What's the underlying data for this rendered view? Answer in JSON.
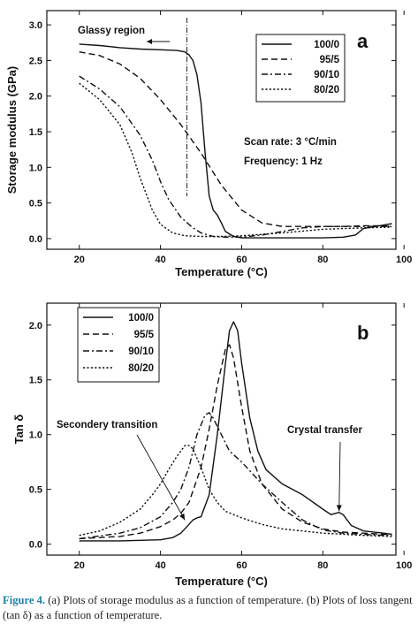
{
  "figure": {
    "caption_label": "Figure 4.",
    "caption_text": "(a) Plots of storage modulus as a function of temperature. (b) Plots of loss tangent (tan δ) as a function of temperature."
  },
  "chart_data": [
    {
      "type": "line",
      "panel_label": "a",
      "xlabel": "Temperature (°C)",
      "ylabel": "Storage modulus (GPa)",
      "xlim": [
        12,
        98
      ],
      "ylim": [
        -0.15,
        3.2
      ],
      "xticks": [
        "20",
        "40",
        "60",
        "80",
        "100"
      ],
      "yticks": [
        "0.0",
        "0.5",
        "1.0",
        "1.5",
        "2.0",
        "2.5",
        "3.0"
      ],
      "annotations": [
        {
          "text": "Glassy region",
          "x": 46.5
        },
        {
          "text": "Scan rate: 3 °C/min"
        },
        {
          "text": "Frequency: 1 Hz"
        }
      ],
      "legend_position": "top-right",
      "series": [
        {
          "name": "100/0",
          "dash": "solid",
          "x": [
            20,
            25,
            30,
            35,
            40,
            44,
            46,
            47,
            48,
            49,
            50,
            51,
            52,
            53,
            54,
            55,
            56,
            58,
            60,
            65,
            70,
            75,
            80,
            85,
            88,
            90,
            95,
            97
          ],
          "y": [
            2.73,
            2.71,
            2.68,
            2.66,
            2.65,
            2.64,
            2.62,
            2.58,
            2.5,
            2.3,
            1.9,
            1.2,
            0.6,
            0.4,
            0.33,
            0.22,
            0.1,
            0.03,
            0.01,
            0.01,
            0.01,
            0.01,
            0.01,
            0.02,
            0.05,
            0.14,
            0.19,
            0.21
          ]
        },
        {
          "name": "95/5",
          "dash": "dash",
          "x": [
            20,
            25,
            30,
            35,
            40,
            45,
            50,
            55,
            60,
            65,
            70,
            75,
            80,
            85,
            90,
            95,
            97
          ],
          "y": [
            2.62,
            2.57,
            2.45,
            2.25,
            1.95,
            1.6,
            1.2,
            0.75,
            0.4,
            0.22,
            0.17,
            0.17,
            0.17,
            0.17,
            0.18,
            0.18,
            0.17
          ]
        },
        {
          "name": "90/10",
          "dash": "dashdot",
          "x": [
            20,
            25,
            30,
            35,
            38,
            40,
            42,
            45,
            48,
            50,
            53,
            56,
            60,
            65,
            70,
            75,
            80,
            85,
            90,
            95,
            97
          ],
          "y": [
            2.28,
            2.1,
            1.85,
            1.45,
            1.1,
            0.8,
            0.55,
            0.3,
            0.15,
            0.08,
            0.03,
            0.02,
            0.02,
            0.05,
            0.1,
            0.15,
            0.17,
            0.17,
            0.17,
            0.17,
            0.17
          ]
        },
        {
          "name": "80/20",
          "dash": "dot",
          "x": [
            20,
            25,
            30,
            33,
            35,
            38,
            40,
            43,
            46,
            50,
            55,
            60,
            70,
            80,
            90,
            97
          ],
          "y": [
            2.18,
            1.95,
            1.6,
            1.2,
            0.85,
            0.4,
            0.2,
            0.08,
            0.04,
            0.03,
            0.03,
            0.04,
            0.08,
            0.13,
            0.15,
            0.16
          ]
        }
      ]
    },
    {
      "type": "line",
      "panel_label": "b",
      "xlabel": "Temperature (°C)",
      "ylabel": "Tan δ",
      "xlim": [
        12,
        98
      ],
      "ylim": [
        -0.1,
        2.2
      ],
      "xticks": [
        "20",
        "40",
        "60",
        "80",
        "100"
      ],
      "yticks": [
        "0.0",
        "0.5",
        "1.0",
        "1.5",
        "2.0"
      ],
      "annotations": [
        {
          "text": "Secondery transition",
          "x": 46,
          "y": 0.22
        },
        {
          "text": "Crystal transfer",
          "x": 84,
          "y": 0.3
        }
      ],
      "legend_position": "top-left",
      "series": [
        {
          "name": "100/0",
          "dash": "solid",
          "x": [
            20,
            30,
            40,
            43,
            45,
            47,
            48,
            49,
            50,
            52,
            54,
            56,
            57,
            58,
            59,
            60,
            62,
            64,
            66,
            70,
            75,
            80,
            82,
            84,
            85,
            87,
            90,
            95,
            97
          ],
          "y": [
            0.03,
            0.03,
            0.04,
            0.06,
            0.1,
            0.18,
            0.22,
            0.24,
            0.25,
            0.45,
            1.0,
            1.65,
            1.95,
            2.03,
            1.95,
            1.65,
            1.15,
            0.85,
            0.68,
            0.55,
            0.45,
            0.32,
            0.27,
            0.29,
            0.27,
            0.17,
            0.12,
            0.1,
            0.09
          ]
        },
        {
          "name": "95/5",
          "dash": "dash",
          "x": [
            20,
            30,
            35,
            40,
            43,
            45,
            47,
            50,
            52,
            54,
            56,
            57,
            58,
            60,
            62,
            65,
            70,
            75,
            80,
            85,
            90,
            95,
            97
          ],
          "y": [
            0.05,
            0.07,
            0.1,
            0.16,
            0.22,
            0.28,
            0.38,
            0.7,
            1.05,
            1.45,
            1.78,
            1.82,
            1.7,
            1.25,
            0.85,
            0.55,
            0.32,
            0.2,
            0.14,
            0.11,
            0.1,
            0.09,
            0.09
          ]
        },
        {
          "name": "90/10",
          "dash": "dashdot",
          "x": [
            20,
            30,
            35,
            40,
            43,
            45,
            47,
            49,
            51,
            52,
            53,
            55,
            57,
            60,
            65,
            70,
            75,
            80,
            85,
            90,
            95,
            97
          ],
          "y": [
            0.05,
            0.1,
            0.15,
            0.25,
            0.38,
            0.5,
            0.7,
            1.0,
            1.18,
            1.2,
            1.15,
            1.0,
            0.85,
            0.75,
            0.55,
            0.38,
            0.22,
            0.13,
            0.1,
            0.09,
            0.08,
            0.08
          ]
        },
        {
          "name": "80/20",
          "dash": "dot",
          "x": [
            20,
            25,
            30,
            35,
            38,
            40,
            42,
            44,
            46,
            47,
            48,
            50,
            52,
            54,
            56,
            60,
            65,
            70,
            75,
            80,
            90,
            97
          ],
          "y": [
            0.08,
            0.12,
            0.2,
            0.32,
            0.45,
            0.55,
            0.68,
            0.8,
            0.9,
            0.9,
            0.87,
            0.7,
            0.5,
            0.38,
            0.3,
            0.24,
            0.18,
            0.14,
            0.12,
            0.1,
            0.08,
            0.07
          ]
        }
      ]
    }
  ]
}
